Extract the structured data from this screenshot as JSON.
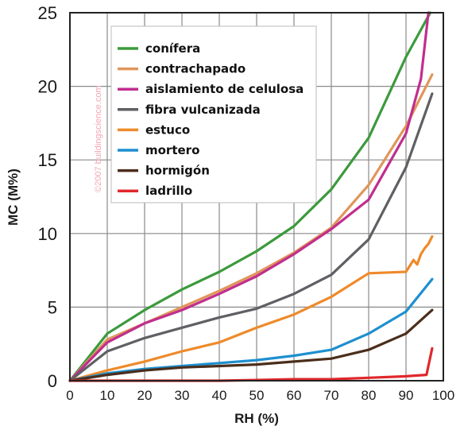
{
  "watermark": "©2007 buildingscience.com",
  "chart_data": {
    "type": "line",
    "title": "",
    "xlabel": "RH (%)",
    "ylabel": "MC (M%)",
    "xlim": [
      0,
      100
    ],
    "ylim": [
      0,
      25
    ],
    "xticks": [
      0,
      10,
      20,
      30,
      40,
      50,
      60,
      70,
      80,
      90,
      100
    ],
    "yticks": [
      0,
      5,
      10,
      15,
      20,
      25
    ],
    "grid": true,
    "legend_position": "top-left",
    "series": [
      {
        "name": "conífera",
        "color": "#3c9a3c",
        "x": [
          0,
          10,
          20,
          30,
          40,
          50,
          60,
          70,
          80,
          90,
          96.5
        ],
        "y": [
          0,
          3.2,
          4.8,
          6.2,
          7.4,
          8.8,
          10.5,
          13,
          16.5,
          22,
          25
        ]
      },
      {
        "name": "contrachapado",
        "color": "#e0965a",
        "x": [
          0,
          10,
          20,
          30,
          40,
          50,
          60,
          70,
          80,
          90,
          97
        ],
        "y": [
          0,
          2.8,
          3.9,
          5.0,
          6.1,
          7.3,
          8.7,
          10.4,
          13.3,
          17.3,
          20.8
        ]
      },
      {
        "name": "aislamiento de celulosa",
        "color": "#c02e8e",
        "x": [
          0,
          10,
          20,
          30,
          40,
          50,
          60,
          70,
          80,
          90,
          94,
          96
        ],
        "y": [
          0,
          2.6,
          3.9,
          4.8,
          5.9,
          7.1,
          8.6,
          10.3,
          12.3,
          16.8,
          20.5,
          25
        ]
      },
      {
        "name": "fibra vulcanizada",
        "color": "#5f6064",
        "x": [
          0,
          10,
          20,
          30,
          40,
          50,
          60,
          70,
          80,
          90,
          97
        ],
        "y": [
          0,
          2.0,
          2.9,
          3.6,
          4.3,
          4.9,
          5.9,
          7.2,
          9.6,
          14.5,
          19.5
        ]
      },
      {
        "name": "estuco",
        "color": "#ee8a2a",
        "x": [
          0,
          10,
          20,
          30,
          40,
          50,
          60,
          70,
          80,
          90,
          92,
          93,
          94,
          95,
          96,
          97
        ],
        "y": [
          0,
          0.7,
          1.3,
          2.0,
          2.6,
          3.6,
          4.5,
          5.7,
          7.3,
          7.4,
          8.2,
          7.9,
          8.6,
          9.0,
          9.3,
          9.8
        ]
      },
      {
        "name": "mortero",
        "color": "#1e8fcf",
        "x": [
          0,
          10,
          20,
          30,
          40,
          50,
          60,
          70,
          80,
          90,
          97
        ],
        "y": [
          0,
          0.5,
          0.8,
          1.0,
          1.2,
          1.4,
          1.7,
          2.1,
          3.2,
          4.7,
          6.9
        ]
      },
      {
        "name": "hormigón",
        "color": "#4b2e1c",
        "x": [
          0,
          10,
          20,
          30,
          40,
          50,
          60,
          70,
          80,
          90,
          97
        ],
        "y": [
          0,
          0.4,
          0.7,
          0.9,
          1.0,
          1.1,
          1.3,
          1.5,
          2.1,
          3.2,
          4.8
        ]
      },
      {
        "name": "ladrillo",
        "color": "#e0282c",
        "x": [
          0,
          10,
          20,
          30,
          40,
          50,
          60,
          70,
          80,
          90,
          95.5,
          97
        ],
        "y": [
          0,
          0,
          0,
          0,
          0,
          0.05,
          0.1,
          0.1,
          0.2,
          0.3,
          0.4,
          2.2
        ]
      }
    ]
  }
}
